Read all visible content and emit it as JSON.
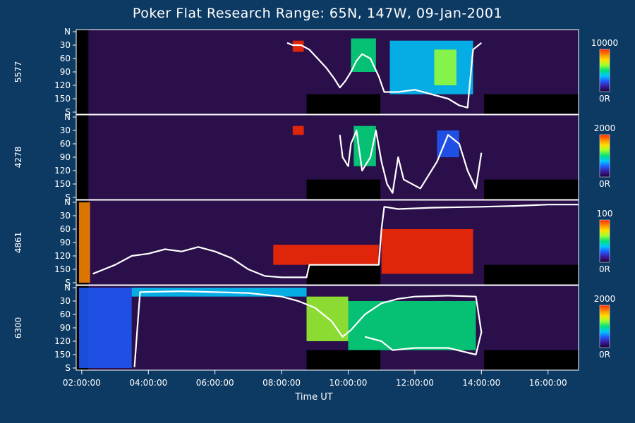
{
  "title": "Poker Flat Research Range: 65N, 147W, 09-Jan-2001",
  "chart_data": {
    "type": "heatmap",
    "title": "Poker Flat Research Range: 65N, 147W, 09-Jan-2001",
    "xlabel": "Time UT",
    "xlim": [
      "01:50:00",
      "16:55:00"
    ],
    "x_ticks": [
      "02:00:00",
      "04:00:00",
      "06:00:00",
      "08:00:00",
      "10:00:00",
      "12:00:00",
      "14:00:00",
      "16:00:00"
    ],
    "y_ticks": [
      "N",
      "30",
      "60",
      "90",
      "120",
      "150",
      "S"
    ],
    "colormap": [
      "#1a0033",
      "#3b1a9c",
      "#1f5bff",
      "#00c8ff",
      "#00e07a",
      "#9cff2e",
      "#ffe000",
      "#ff8a00",
      "#ff2a00"
    ],
    "panels": [
      {
        "name": "5577",
        "colorbar_max": "10000",
        "colorbar_min": "0R",
        "dark_segments": [
          [
            "08:45",
            "10:58"
          ],
          [
            "14:05",
            "16:55"
          ]
        ],
        "white_line": [
          [
            "08:10",
            25
          ],
          [
            "08:20",
            30
          ],
          [
            "08:35",
            30
          ],
          [
            "08:50",
            40
          ],
          [
            "09:05",
            60
          ],
          [
            "09:20",
            80
          ],
          [
            "09:35",
            105
          ],
          [
            "09:45",
            125
          ],
          [
            "09:55",
            110
          ],
          [
            "10:05",
            90
          ],
          [
            "10:15",
            65
          ],
          [
            "10:25",
            50
          ],
          [
            "10:40",
            60
          ],
          [
            "10:55",
            100
          ],
          [
            "11:05",
            135
          ],
          [
            "11:30",
            135
          ],
          [
            "12:00",
            130
          ],
          [
            "12:30",
            140
          ],
          [
            "13:00",
            150
          ],
          [
            "13:20",
            165
          ],
          [
            "13:35",
            170
          ],
          [
            "13:45",
            40
          ],
          [
            "14:00",
            25
          ]
        ],
        "bright_regions": [
          {
            "t0": "08:20",
            "t1": "08:40",
            "y0": 20,
            "y1": 45,
            "level": 0.95
          },
          {
            "t0": "10:05",
            "t1": "10:50",
            "y0": 15,
            "y1": 90,
            "level": 0.5
          },
          {
            "t0": "11:15",
            "t1": "13:45",
            "y0": 20,
            "y1": 140,
            "level": 0.4
          },
          {
            "t0": "12:35",
            "t1": "13:15",
            "y0": 40,
            "y1": 120,
            "level": 0.6
          }
        ]
      },
      {
        "name": "4278",
        "colorbar_max": "2000",
        "colorbar_min": "0R",
        "dark_segments": [
          [
            "08:45",
            "10:58"
          ],
          [
            "14:05",
            "16:55"
          ]
        ],
        "white_line": [
          [
            "09:45",
            40
          ],
          [
            "09:50",
            90
          ],
          [
            "10:00",
            110
          ],
          [
            "10:05",
            60
          ],
          [
            "10:15",
            30
          ],
          [
            "10:25",
            120
          ],
          [
            "10:40",
            90
          ],
          [
            "10:50",
            30
          ],
          [
            "11:00",
            100
          ],
          [
            "11:10",
            150
          ],
          [
            "11:20",
            170
          ],
          [
            "11:30",
            90
          ],
          [
            "11:40",
            140
          ],
          [
            "12:10",
            160
          ],
          [
            "12:40",
            100
          ],
          [
            "13:00",
            40
          ],
          [
            "13:20",
            60
          ],
          [
            "13:35",
            120
          ],
          [
            "13:50",
            160
          ],
          [
            "14:00",
            80
          ]
        ],
        "bright_regions": [
          {
            "t0": "08:20",
            "t1": "08:40",
            "y0": 20,
            "y1": 40,
            "level": 0.95
          },
          {
            "t0": "10:10",
            "t1": "10:50",
            "y0": 20,
            "y1": 110,
            "level": 0.55
          },
          {
            "t0": "12:40",
            "t1": "13:20",
            "y0": 30,
            "y1": 90,
            "level": 0.3
          }
        ]
      },
      {
        "name": "4861",
        "colorbar_max": "100",
        "colorbar_min": "0R",
        "dark_segments": [
          [
            "08:45",
            "10:58"
          ],
          [
            "14:05",
            "16:55"
          ]
        ],
        "white_line": [
          [
            "02:20",
            160
          ],
          [
            "03:00",
            140
          ],
          [
            "03:30",
            120
          ],
          [
            "04:00",
            115
          ],
          [
            "04:30",
            105
          ],
          [
            "05:00",
            110
          ],
          [
            "05:30",
            100
          ],
          [
            "06:00",
            110
          ],
          [
            "06:30",
            125
          ],
          [
            "07:00",
            150
          ],
          [
            "07:30",
            165
          ],
          [
            "08:00",
            168
          ],
          [
            "08:45",
            168
          ],
          [
            "08:50",
            140
          ],
          [
            "10:55",
            140
          ],
          [
            "11:00",
            60
          ],
          [
            "11:05",
            10
          ],
          [
            "11:30",
            15
          ],
          [
            "12:30",
            12
          ],
          [
            "14:00",
            10
          ],
          [
            "15:00",
            8
          ],
          [
            "16:00",
            5
          ],
          [
            "16:55",
            5
          ]
        ],
        "bright_regions": [
          {
            "t0": "01:55",
            "t1": "02:15",
            "y0": 0,
            "y1": 180,
            "level": 0.85
          },
          {
            "t0": "07:45",
            "t1": "10:55",
            "y0": 95,
            "y1": 140,
            "level": 0.95
          },
          {
            "t0": "11:00",
            "t1": "13:45",
            "y0": 60,
            "y1": 160,
            "level": 0.95
          }
        ]
      },
      {
        "name": "6300",
        "colorbar_max": "2000",
        "colorbar_min": "0R",
        "dark_segments": [
          [
            "08:45",
            "10:58"
          ],
          [
            "14:05",
            "16:55"
          ]
        ],
        "white_line": [
          [
            "03:35",
            178
          ],
          [
            "03:45",
            10
          ],
          [
            "05:00",
            8
          ],
          [
            "06:00",
            10
          ],
          [
            "07:00",
            12
          ],
          [
            "08:00",
            20
          ],
          [
            "08:30",
            30
          ],
          [
            "09:00",
            45
          ],
          [
            "09:30",
            75
          ],
          [
            "09:50",
            110
          ],
          [
            "10:05",
            95
          ],
          [
            "10:30",
            60
          ],
          [
            "11:00",
            35
          ],
          [
            "11:30",
            25
          ],
          [
            "12:00",
            20
          ],
          [
            "13:00",
            18
          ],
          [
            "13:50",
            20
          ],
          [
            "14:00",
            100
          ],
          [
            "13:50",
            150
          ],
          [
            "13:00",
            135
          ],
          [
            "12:00",
            135
          ],
          [
            "11:20",
            140
          ],
          [
            "11:00",
            120
          ],
          [
            "10:30",
            110
          ]
        ],
        "bright_regions": [
          {
            "t0": "01:55",
            "t1": "03:30",
            "y0": 0,
            "y1": 180,
            "level": 0.3
          },
          {
            "t0": "03:30",
            "t1": "08:45",
            "y0": 0,
            "y1": 20,
            "level": 0.35
          },
          {
            "t0": "08:45",
            "t1": "10:00",
            "y0": 20,
            "y1": 120,
            "level": 0.6
          },
          {
            "t0": "10:00",
            "t1": "13:50",
            "y0": 30,
            "y1": 140,
            "level": 0.55
          }
        ]
      }
    ]
  }
}
